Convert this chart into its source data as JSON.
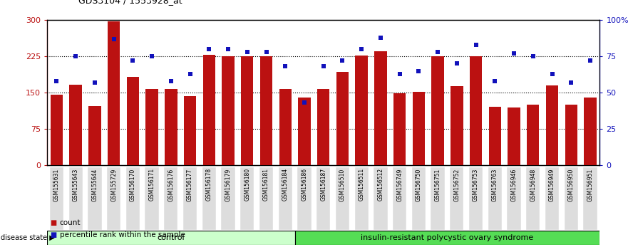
{
  "title": "GDS3104 / 1553928_at",
  "samples": [
    "GSM155631",
    "GSM155643",
    "GSM155644",
    "GSM155729",
    "GSM156170",
    "GSM156171",
    "GSM156176",
    "GSM156177",
    "GSM156178",
    "GSM156179",
    "GSM156180",
    "GSM156181",
    "GSM156184",
    "GSM156186",
    "GSM156187",
    "GSM156510",
    "GSM156511",
    "GSM156512",
    "GSM156749",
    "GSM156750",
    "GSM156751",
    "GSM156752",
    "GSM156753",
    "GSM156763",
    "GSM156946",
    "GSM156948",
    "GSM156949",
    "GSM156950",
    "GSM156951"
  ],
  "counts": [
    145,
    167,
    122,
    297,
    183,
    157,
    157,
    143,
    228,
    226,
    226,
    226,
    157,
    140,
    157,
    193,
    227,
    235,
    148,
    152,
    225,
    163,
    225,
    120,
    119,
    125,
    165,
    125,
    140
  ],
  "percentile": [
    58,
    75,
    57,
    87,
    72,
    75,
    58,
    63,
    80,
    80,
    78,
    78,
    68,
    43,
    68,
    72,
    80,
    88,
    63,
    65,
    78,
    70,
    83,
    58,
    77,
    75,
    63,
    57,
    72
  ],
  "control_count": 13,
  "disease_count": 16,
  "bar_color": "#bb1111",
  "dot_color": "#1111bb",
  "control_label": "control",
  "disease_label": "insulin-resistant polycystic ovary syndrome",
  "control_bg": "#ccffcc",
  "disease_bg": "#55dd55",
  "ylim_left": [
    0,
    300
  ],
  "ylim_right": [
    0,
    100
  ],
  "yticks_left": [
    0,
    75,
    150,
    225,
    300
  ],
  "yticks_right": [
    0,
    25,
    50,
    75,
    100
  ],
  "hlines": [
    75,
    150,
    225
  ],
  "legend_count_label": "count",
  "legend_pct_label": "percentile rank within the sample"
}
